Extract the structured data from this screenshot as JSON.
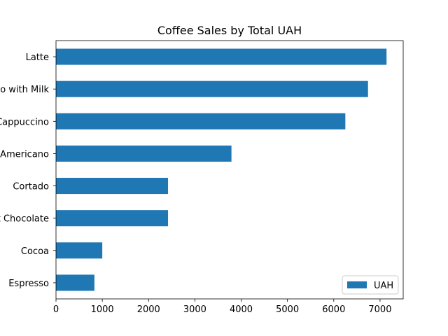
{
  "chart_data": {
    "type": "bar",
    "orientation": "horizontal",
    "title": "Coffee Sales by Total UAH",
    "xlabel": "",
    "ylabel": "",
    "categories": [
      "Latte",
      "Americano with Milk",
      "Cappuccino",
      "Americano",
      "Cortado",
      "Hot Chocolate",
      "Cocoa",
      "Espresso"
    ],
    "series": [
      {
        "name": "UAH",
        "color": "#1f77b4",
        "values": [
          7140,
          6740,
          6250,
          3790,
          2420,
          2420,
          1000,
          830
        ]
      }
    ],
    "xlim": [
      0,
      7500
    ],
    "xticks": [
      0,
      1000,
      2000,
      3000,
      4000,
      5000,
      6000,
      7000
    ],
    "grid": false,
    "legend_position": "lower-right"
  }
}
